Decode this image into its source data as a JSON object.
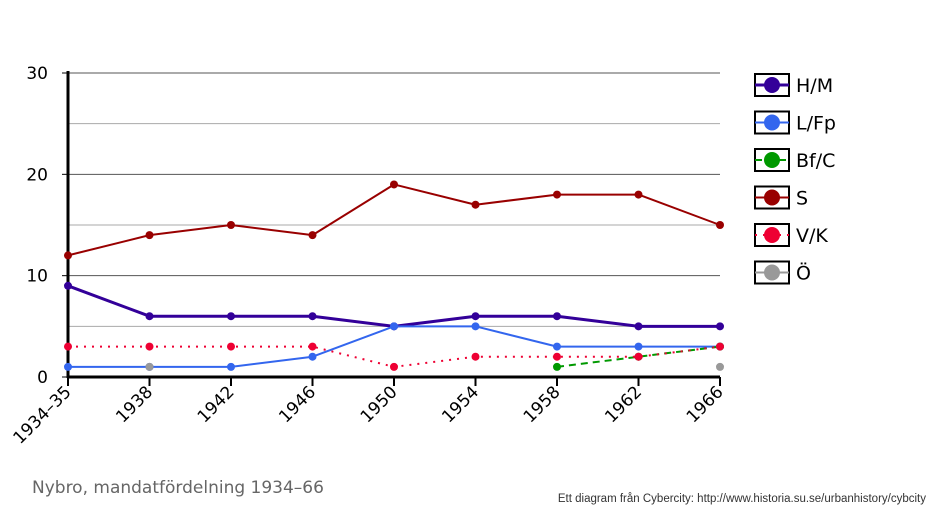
{
  "caption": "Nybro, mandatfördelning 1934–66",
  "credit": "Ett diagram från Cybercity: http://www.historia.su.se/urbanhistory/cybcity",
  "chart_data": {
    "type": "line",
    "categories": [
      "1934–35",
      "1938",
      "1942",
      "1946",
      "1950",
      "1954",
      "1958",
      "1962",
      "1966"
    ],
    "ylim": [
      0,
      30
    ],
    "yticks": [
      "0",
      "10",
      "20",
      "30"
    ],
    "grid": true,
    "legend_position": "right",
    "series": [
      {
        "name": "H/M",
        "color": "#330099",
        "style": "solid-thick",
        "values": [
          9,
          6,
          6,
          6,
          5,
          6,
          6,
          5,
          5
        ]
      },
      {
        "name": "L/Fp",
        "color": "#3366ee",
        "style": "solid",
        "values": [
          1,
          1,
          1,
          2,
          5,
          5,
          3,
          3,
          3
        ]
      },
      {
        "name": "Bf/C",
        "color": "#009900",
        "style": "dashed",
        "values": [
          null,
          null,
          null,
          null,
          null,
          null,
          1,
          2,
          3
        ]
      },
      {
        "name": "S",
        "color": "#990000",
        "style": "solid",
        "values": [
          12,
          14,
          15,
          14,
          19,
          17,
          18,
          18,
          15
        ]
      },
      {
        "name": "V/K",
        "color": "#ee0033",
        "style": "dotted",
        "values": [
          3,
          3,
          3,
          3,
          1,
          2,
          2,
          2,
          3
        ]
      },
      {
        "name": "Ö",
        "color": "#999999",
        "style": "solid",
        "values": [
          null,
          1,
          null,
          null,
          null,
          null,
          null,
          null,
          1
        ]
      }
    ]
  }
}
